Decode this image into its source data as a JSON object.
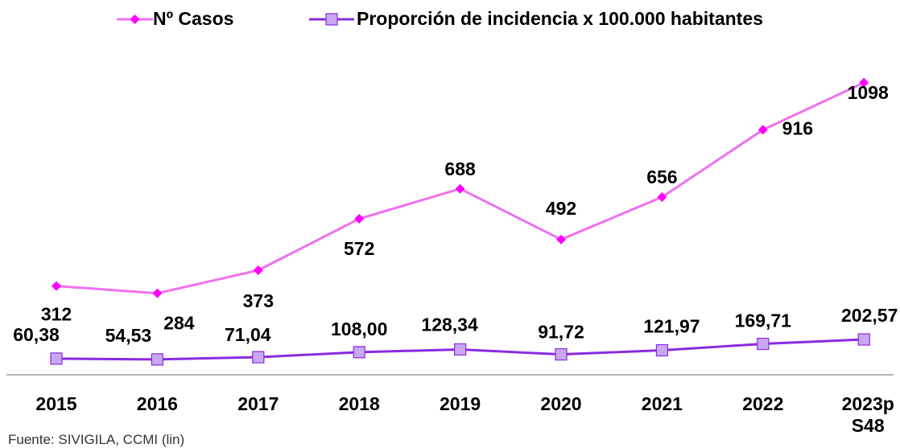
{
  "chart_data": {
    "type": "line",
    "categories": [
      "2015",
      "2016",
      "2017",
      "2018",
      "2019",
      "2020",
      "2021",
      "2022",
      "2023p S48"
    ],
    "series": [
      {
        "name": "Nº Casos",
        "color": "#f070f0",
        "marker_color": "#ff00ff",
        "marker": "diamond",
        "values": [
          312,
          284,
          373,
          572,
          688,
          492,
          656,
          916,
          1098
        ]
      },
      {
        "name": "Proporción de incidencia x 100.000 habitantes",
        "color": "#8a2be2",
        "marker_color": "#c8a8f0",
        "marker": "square",
        "axis": "y2",
        "values": [
          60.38,
          54.53,
          71.04,
          108.0,
          128.34,
          91.72,
          121.97,
          169.71,
          202.57
        ],
        "value_labels": [
          "60,38",
          "54,53",
          "71,04",
          "108,00",
          "128,34",
          "91,72",
          "121,97",
          "169,71",
          "202,57"
        ]
      }
    ],
    "ylim": [
      0,
      1200
    ],
    "y2lim": [
      0,
      2300
    ],
    "legend": "top",
    "source": "Fuente: SIVIGILA, CCMI (lin)"
  }
}
